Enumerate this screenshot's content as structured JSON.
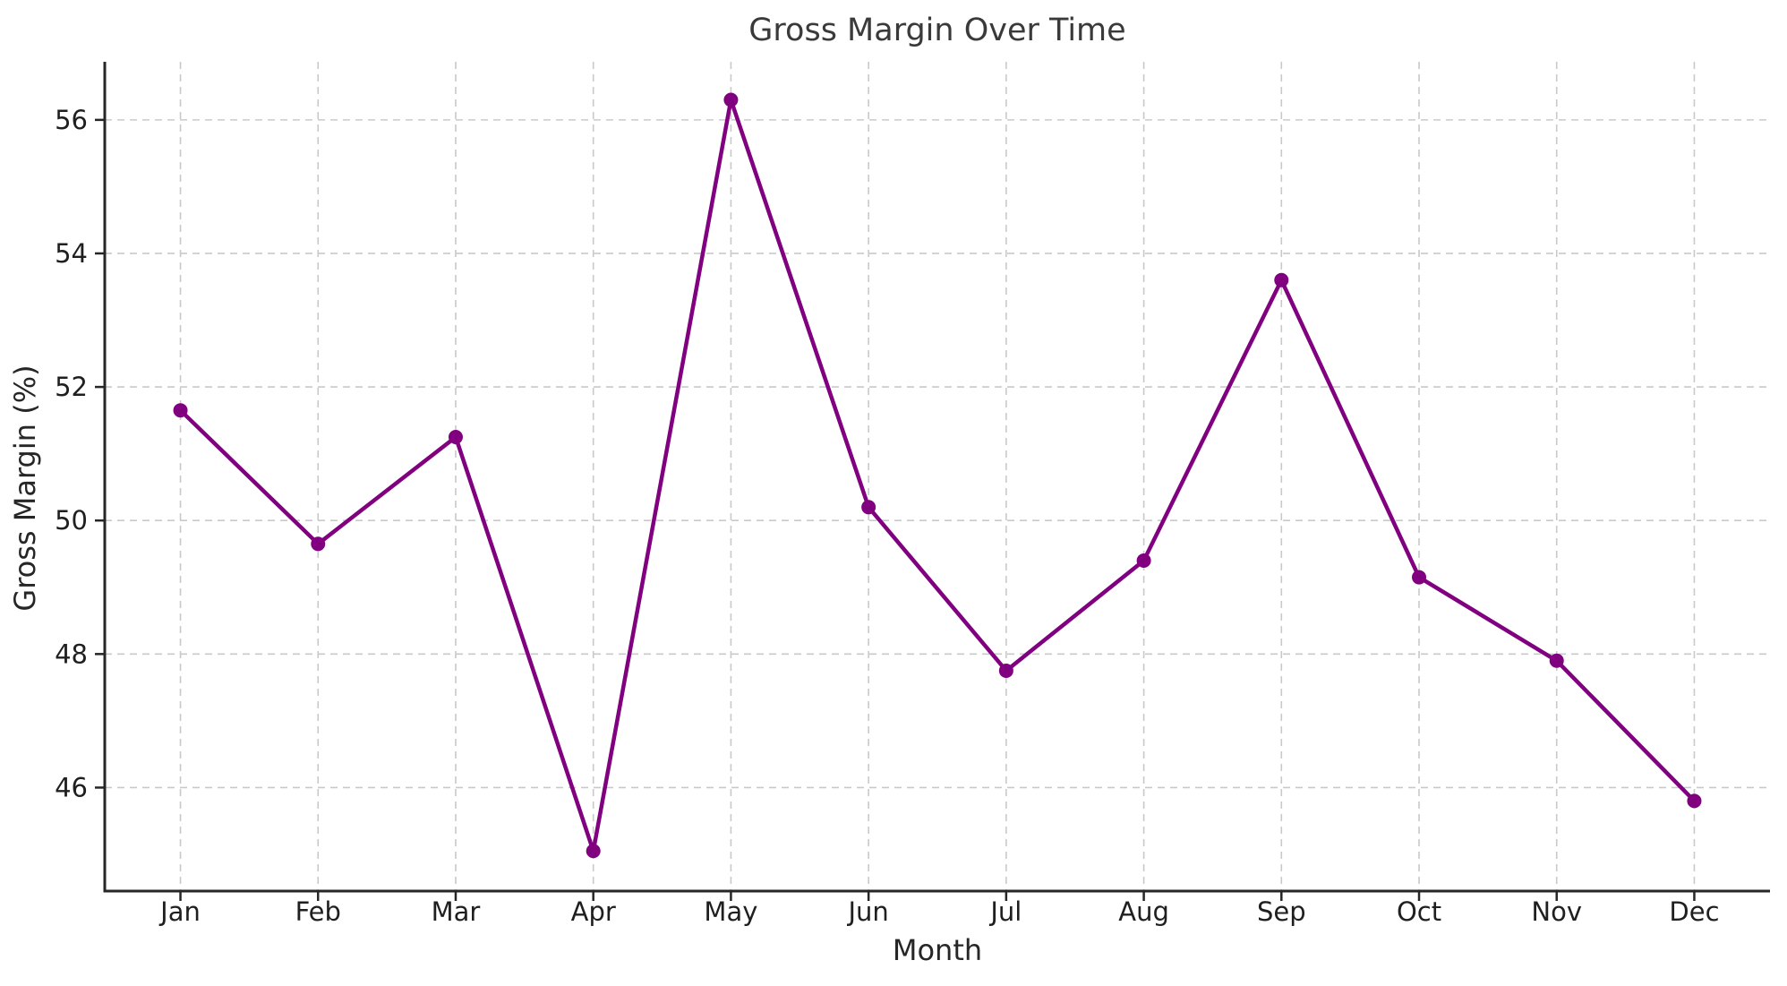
{
  "chart_data": {
    "type": "line",
    "title": "Gross Margin Over Time",
    "xlabel": "Month",
    "ylabel": "Gross Margin (%)",
    "categories": [
      "Jan",
      "Feb",
      "Mar",
      "Apr",
      "May",
      "Jun",
      "Jul",
      "Aug",
      "Sep",
      "Oct",
      "Nov",
      "Dec"
    ],
    "series": [
      {
        "name": "Gross Margin (%)",
        "values": [
          51.65,
          49.65,
          51.25,
          45.05,
          56.3,
          50.2,
          47.75,
          49.4,
          53.6,
          49.15,
          47.9,
          45.8
        ]
      }
    ],
    "yticks": [
      46,
      48,
      50,
      52,
      54,
      56
    ],
    "ylim": [
      44.45,
      56.87
    ],
    "grid": true,
    "grid_style": "dashed",
    "legend": "none",
    "line_color": "#800080",
    "marker": "circle",
    "marker_radius": 8,
    "line_width": 4.5,
    "background": "#ffffff",
    "grid_color": "#c9c9c9",
    "spine_color": "#262626",
    "text_color": "#1f1f1f",
    "title_color": "#3a3a3a"
  }
}
